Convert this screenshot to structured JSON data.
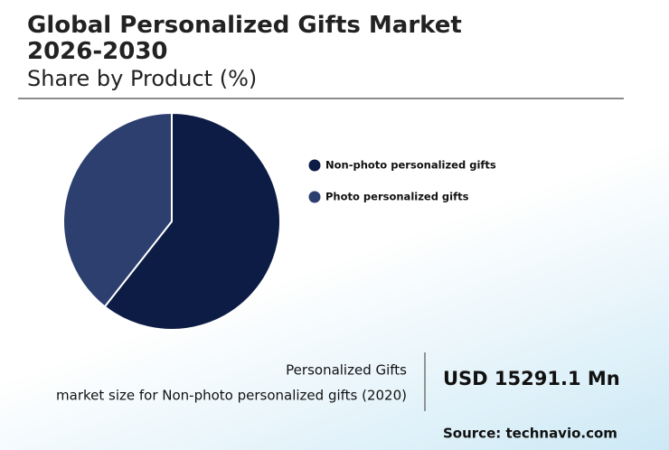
{
  "chart_data": {
    "type": "pie",
    "title": "Global Personalized Gifts Market 2026-2030",
    "subtitle": "Share by Product (%)",
    "categories": [
      "Non-photo personalized gifts",
      "Photo personalized gifts"
    ],
    "values": [
      60.6,
      39.4
    ],
    "colors": [
      "#0c1c45",
      "#2c3f6e"
    ],
    "start_angle": -90,
    "direction": "clockwise",
    "legend": "right"
  },
  "highlight": {
    "label_line1": "Personalized Gifts",
    "label_line2": "market size for Non-photo personalized gifts (2020)",
    "value": "USD 15291.1 Mn"
  },
  "source": "Source: technavio.com"
}
